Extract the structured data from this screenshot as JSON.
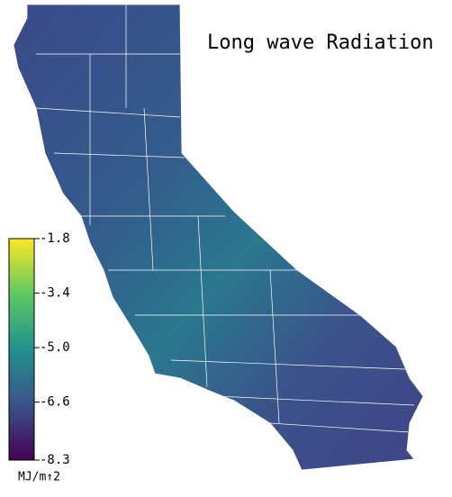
{
  "title": "Long wave Radiation",
  "colorbar": {
    "lim": [
      -8.3,
      -1.8
    ],
    "ticks": [
      -1.8,
      -3.4,
      {
        "value": -5,
        "label": "-5.0"
      },
      -6.6,
      -8.3
    ],
    "label": "MJ/m↑2"
  }
}
